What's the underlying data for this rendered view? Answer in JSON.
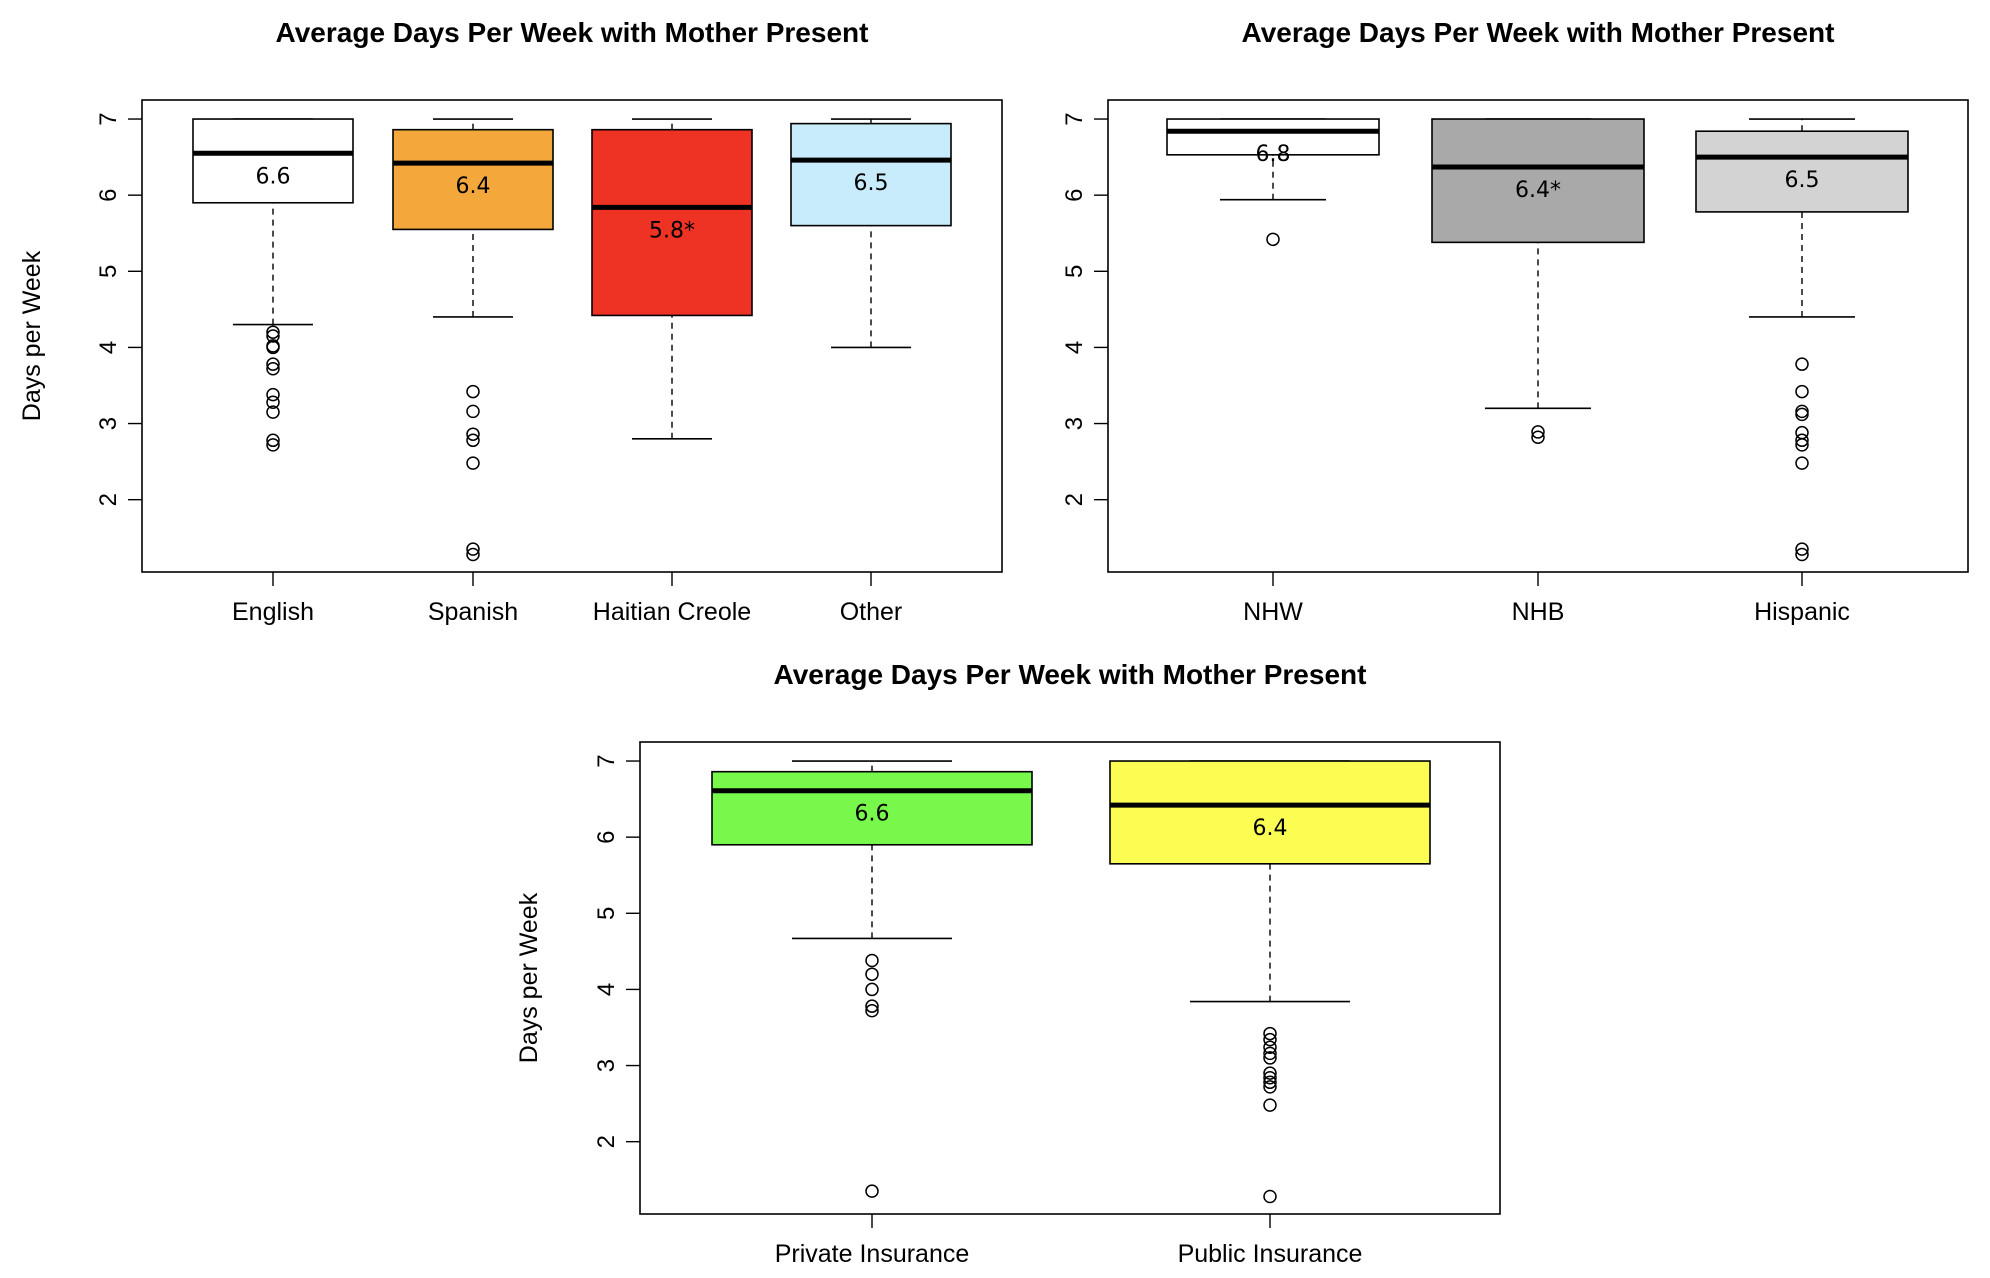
{
  "chart_data": [
    {
      "type": "box",
      "title": "Average Days Per Week with Mother Present",
      "ylabel": "Days per Week",
      "xlabel": "",
      "ylim": [
        1.05,
        7.25
      ],
      "yticks": [
        2,
        3,
        4,
        5,
        6,
        7
      ],
      "categories": [
        "English",
        "Spanish",
        "Haitian Creole",
        "Other"
      ],
      "boxes": [
        {
          "category": "English",
          "color": "#ffffff",
          "whisker_low": 4.3,
          "q1": 5.9,
          "median": 6.55,
          "q3": 7.0,
          "whisker_high": 7.0,
          "label": "6.6",
          "outliers": [
            4.2,
            4.15,
            4.02,
            4.0,
            3.78,
            3.72,
            3.38,
            3.28,
            3.15,
            2.78,
            2.72
          ]
        },
        {
          "category": "Spanish",
          "color": "#f4a83c",
          "whisker_low": 4.4,
          "q1": 5.55,
          "median": 6.42,
          "q3": 6.86,
          "whisker_high": 7.0,
          "label": "6.4",
          "outliers": [
            3.42,
            3.16,
            2.86,
            2.78,
            2.48,
            1.35,
            1.28
          ]
        },
        {
          "category": "Haitian Creole",
          "color": "#ee3224",
          "whisker_low": 2.8,
          "q1": 4.42,
          "median": 5.84,
          "q3": 6.86,
          "whisker_high": 7.0,
          "label": "5.8*",
          "outliers": []
        },
        {
          "category": "Other",
          "color": "#c8ecfb",
          "whisker_low": 4.0,
          "q1": 5.6,
          "median": 6.46,
          "q3": 6.94,
          "whisker_high": 7.0,
          "label": "6.5",
          "outliers": []
        }
      ]
    },
    {
      "type": "box",
      "title": "Average Days Per Week with Mother Present",
      "ylabel": "",
      "xlabel": "",
      "ylim": [
        1.05,
        7.25
      ],
      "yticks": [
        2,
        3,
        4,
        5,
        6,
        7
      ],
      "categories": [
        "NHW",
        "NHB",
        "Hispanic"
      ],
      "boxes": [
        {
          "category": "NHW",
          "color": "#ffffff",
          "whisker_low": 5.94,
          "q1": 6.53,
          "median": 6.84,
          "q3": 7.0,
          "whisker_high": 7.0,
          "label": "6.8",
          "outliers": [
            5.42
          ]
        },
        {
          "category": "NHB",
          "color": "#a9a9a9",
          "whisker_low": 3.2,
          "q1": 5.38,
          "median": 6.37,
          "q3": 7.0,
          "whisker_high": 7.0,
          "label": "6.4*",
          "outliers": [
            2.89,
            2.82
          ]
        },
        {
          "category": "Hispanic",
          "color": "#d3d3d3",
          "whisker_low": 4.4,
          "q1": 5.78,
          "median": 6.5,
          "q3": 6.84,
          "whisker_high": 7.0,
          "label": "6.5",
          "outliers": [
            3.78,
            3.42,
            3.16,
            3.12,
            2.88,
            2.78,
            2.72,
            2.48,
            1.35,
            1.28
          ]
        }
      ]
    },
    {
      "type": "box",
      "title": "Average Days Per Week with Mother Present",
      "ylabel": "Days per Week",
      "xlabel": "",
      "ylim": [
        1.05,
        7.25
      ],
      "yticks": [
        2,
        3,
        4,
        5,
        6,
        7
      ],
      "categories": [
        "Private Insurance",
        "Public Insurance"
      ],
      "boxes": [
        {
          "category": "Private Insurance",
          "color": "#77f84a",
          "whisker_low": 4.67,
          "q1": 5.9,
          "median": 6.61,
          "q3": 6.86,
          "whisker_high": 7.0,
          "label": "6.6",
          "outliers": [
            4.38,
            4.2,
            4.0,
            3.78,
            3.72,
            1.35
          ]
        },
        {
          "category": "Public Insurance",
          "color": "#fcfd53",
          "whisker_low": 3.84,
          "q1": 5.65,
          "median": 6.42,
          "q3": 7.0,
          "whisker_high": 7.0,
          "label": "6.4",
          "outliers": [
            3.42,
            3.34,
            3.24,
            3.16,
            3.1,
            2.9,
            2.84,
            2.78,
            2.72,
            2.48,
            1.28
          ]
        }
      ]
    }
  ]
}
